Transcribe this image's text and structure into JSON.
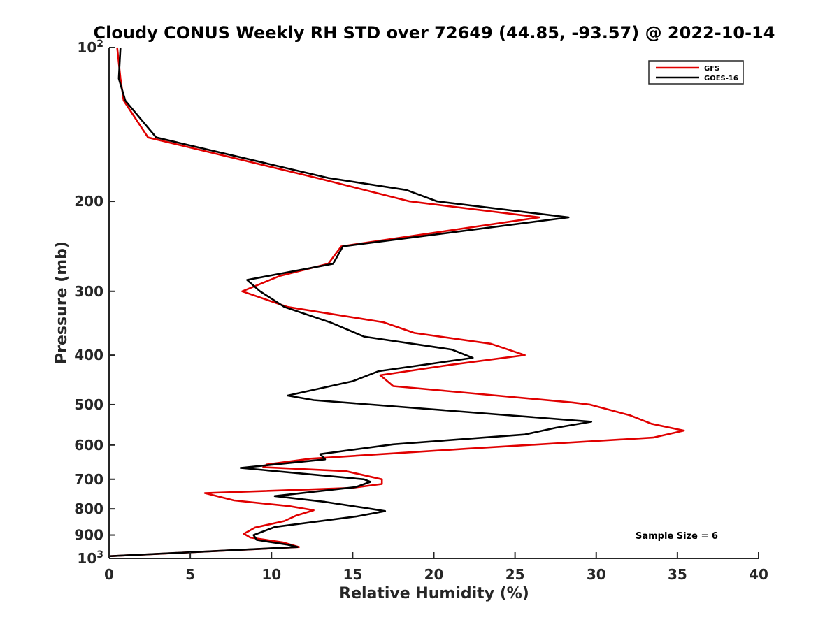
{
  "chart_data": {
    "type": "line",
    "title": "Cloudy CONUS Weekly RH STD over 72649 (44.85, -93.57) @ 2022-10-14",
    "xlabel": "Relative Humidity (%)",
    "ylabel": "Pressure (mb)",
    "xlim": [
      0,
      40
    ],
    "ylim": [
      100,
      1000
    ],
    "yscale": "log",
    "y_reversed": true,
    "x_ticks": [
      0,
      5,
      10,
      15,
      20,
      25,
      30,
      35,
      40
    ],
    "y_ticks": [
      {
        "value": 100,
        "label": "10",
        "sup": "2"
      },
      {
        "value": 200,
        "label": "200",
        "sup": ""
      },
      {
        "value": 300,
        "label": "300",
        "sup": ""
      },
      {
        "value": 400,
        "label": "400",
        "sup": ""
      },
      {
        "value": 500,
        "label": "500",
        "sup": ""
      },
      {
        "value": 600,
        "label": "600",
        "sup": ""
      },
      {
        "value": 700,
        "label": "700",
        "sup": ""
      },
      {
        "value": 800,
        "label": "800",
        "sup": ""
      },
      {
        "value": 900,
        "label": "900",
        "sup": ""
      },
      {
        "value": 1000,
        "label": "10",
        "sup": "3"
      }
    ],
    "grid": false,
    "legend_position": "top-right",
    "annotation": "Sample Size = 6",
    "series": [
      {
        "name": "GFS",
        "color": "#e00000",
        "points": [
          [
            0.5,
            100
          ],
          [
            0.7,
            115
          ],
          [
            0.9,
            127
          ],
          [
            2.4,
            150
          ],
          [
            12.8,
            180
          ],
          [
            18.5,
            200
          ],
          [
            26.5,
            215
          ],
          [
            14.3,
            245
          ],
          [
            13.5,
            265
          ],
          [
            10.5,
            280
          ],
          [
            8.2,
            300
          ],
          [
            11.0,
            322
          ],
          [
            16.9,
            345
          ],
          [
            18.8,
            362
          ],
          [
            23.5,
            380
          ],
          [
            25.6,
            400
          ],
          [
            21.0,
            418
          ],
          [
            16.7,
            438
          ],
          [
            17.5,
            460
          ],
          [
            28.5,
            495
          ],
          [
            29.6,
            500
          ],
          [
            32.1,
            525
          ],
          [
            33.4,
            545
          ],
          [
            35.4,
            562
          ],
          [
            33.5,
            580
          ],
          [
            22.0,
            610
          ],
          [
            12.4,
            638
          ],
          [
            9.7,
            655
          ],
          [
            9.5,
            663
          ],
          [
            14.6,
            675
          ],
          [
            16.8,
            700
          ],
          [
            16.8,
            715
          ],
          [
            14.9,
            728
          ],
          [
            5.9,
            745
          ],
          [
            7.7,
            770
          ],
          [
            11.1,
            790
          ],
          [
            12.6,
            805
          ],
          [
            11.5,
            825
          ],
          [
            10.8,
            845
          ],
          [
            9.0,
            870
          ],
          [
            8.3,
            895
          ],
          [
            8.7,
            910
          ],
          [
            10.7,
            930
          ],
          [
            11.7,
            950
          ],
          [
            0.0,
            990
          ]
        ]
      },
      {
        "name": "GOES-16",
        "color": "#000000",
        "points": [
          [
            0.7,
            100
          ],
          [
            0.6,
            115
          ],
          [
            1.0,
            127
          ],
          [
            2.9,
            150
          ],
          [
            13.5,
            180
          ],
          [
            18.3,
            190
          ],
          [
            20.2,
            200
          ],
          [
            28.3,
            215
          ],
          [
            14.4,
            245
          ],
          [
            13.8,
            265
          ],
          [
            8.5,
            285
          ],
          [
            9.3,
            300
          ],
          [
            10.8,
            322
          ],
          [
            13.6,
            345
          ],
          [
            15.7,
            368
          ],
          [
            21.1,
            390
          ],
          [
            22.4,
            405
          ],
          [
            16.6,
            430
          ],
          [
            15.0,
            450
          ],
          [
            11.0,
            480
          ],
          [
            12.6,
            490
          ],
          [
            29.7,
            540
          ],
          [
            27.5,
            555
          ],
          [
            25.6,
            572
          ],
          [
            17.5,
            598
          ],
          [
            13.0,
            625
          ],
          [
            13.3,
            640
          ],
          [
            8.1,
            665
          ],
          [
            15.7,
            700
          ],
          [
            16.1,
            708
          ],
          [
            15.2,
            725
          ],
          [
            10.2,
            755
          ],
          [
            13.3,
            775
          ],
          [
            15.6,
            795
          ],
          [
            17.0,
            808
          ],
          [
            15.2,
            828
          ],
          [
            10.2,
            868
          ],
          [
            8.9,
            900
          ],
          [
            9.1,
            920
          ],
          [
            11.0,
            940
          ],
          [
            11.6,
            950
          ],
          [
            0.0,
            990
          ]
        ]
      }
    ]
  }
}
